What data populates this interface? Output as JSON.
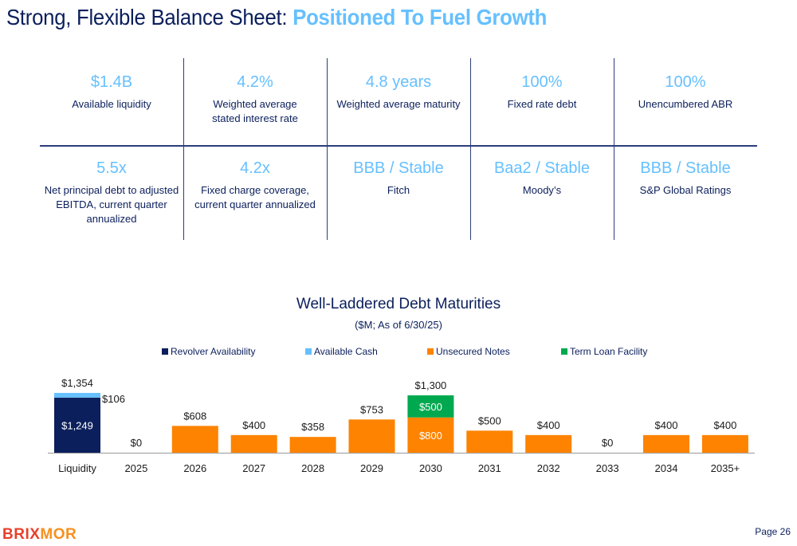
{
  "slide": {
    "title_main": "Strong, Flexible Balance Sheet: ",
    "title_accent": "Positioned To Fuel Growth",
    "page_label": "Page 26",
    "logo": {
      "part1": "BRI",
      "part2": "X",
      "part3": "MOR"
    }
  },
  "metrics": [
    {
      "value": "$1.4B",
      "label": "Available liquidity"
    },
    {
      "value": "4.2%",
      "label": "Weighted average stated interest rate"
    },
    {
      "value": "4.8 years",
      "label": "Weighted average maturity"
    },
    {
      "value": "100%",
      "label": "Fixed rate debt"
    },
    {
      "value": "100%",
      "label": "Unencumbered ABR"
    },
    {
      "value": "5.5x",
      "label": "Net principal debt to adjusted EBITDA, current quarter annualized"
    },
    {
      "value": "4.2x",
      "label": "Fixed charge coverage, current quarter annualized"
    },
    {
      "value": "BBB / Stable",
      "label": "Fitch"
    },
    {
      "value": "Baa2 / Stable",
      "label": "Moody’s"
    },
    {
      "value": "BBB / Stable",
      "label": "S&P Global Ratings"
    }
  ],
  "colors": {
    "navy": "#0b1f5c",
    "light_blue": "#66c0ff",
    "orange": "#fd8300",
    "green": "#00a94f",
    "axis": "#a6a6a6"
  },
  "chart_data": {
    "type": "bar",
    "stacked": true,
    "title": "Well-Laddered Debt Maturities",
    "subtitle": "($M; As of 6/30/25)",
    "xlabel": "",
    "ylabel": "",
    "legend_position": "top",
    "grid": false,
    "categories": [
      "Liquidity",
      "2025",
      "2026",
      "2027",
      "2028",
      "2029",
      "2030",
      "2031",
      "2032",
      "2033",
      "2034",
      "2035+"
    ],
    "series": [
      {
        "name": "Revolver Availability",
        "color": "#0b1f5c",
        "values": [
          1249,
          0,
          0,
          0,
          0,
          0,
          0,
          0,
          0,
          0,
          0,
          0
        ]
      },
      {
        "name": "Available Cash",
        "color": "#66c0ff",
        "values": [
          106,
          0,
          0,
          0,
          0,
          0,
          0,
          0,
          0,
          0,
          0,
          0
        ]
      },
      {
        "name": "Unsecured Notes",
        "color": "#fd8300",
        "values": [
          0,
          0,
          608,
          400,
          358,
          753,
          800,
          500,
          400,
          0,
          400,
          400
        ]
      },
      {
        "name": "Term Loan Facility",
        "color": "#00a94f",
        "values": [
          0,
          0,
          0,
          0,
          0,
          0,
          500,
          0,
          0,
          0,
          0,
          0
        ]
      }
    ],
    "total_labels": [
      "$1,354",
      "$0",
      "$608",
      "$400",
      "$358",
      "$753",
      "$1,300",
      "$500",
      "$400",
      "$0",
      "$400",
      "$400"
    ],
    "segment_labels": [
      {
        "category": "Liquidity",
        "series": "Revolver Availability",
        "text": "$1,249",
        "placement": "inside"
      },
      {
        "category": "Liquidity",
        "series": "Available Cash",
        "text": "$106",
        "placement": "right"
      },
      {
        "category": "2030",
        "series": "Unsecured Notes",
        "text": "$800",
        "placement": "inside"
      },
      {
        "category": "2030",
        "series": "Term Loan Facility",
        "text": "$500",
        "placement": "inside"
      }
    ],
    "ylim": [
      0,
      1400
    ]
  }
}
